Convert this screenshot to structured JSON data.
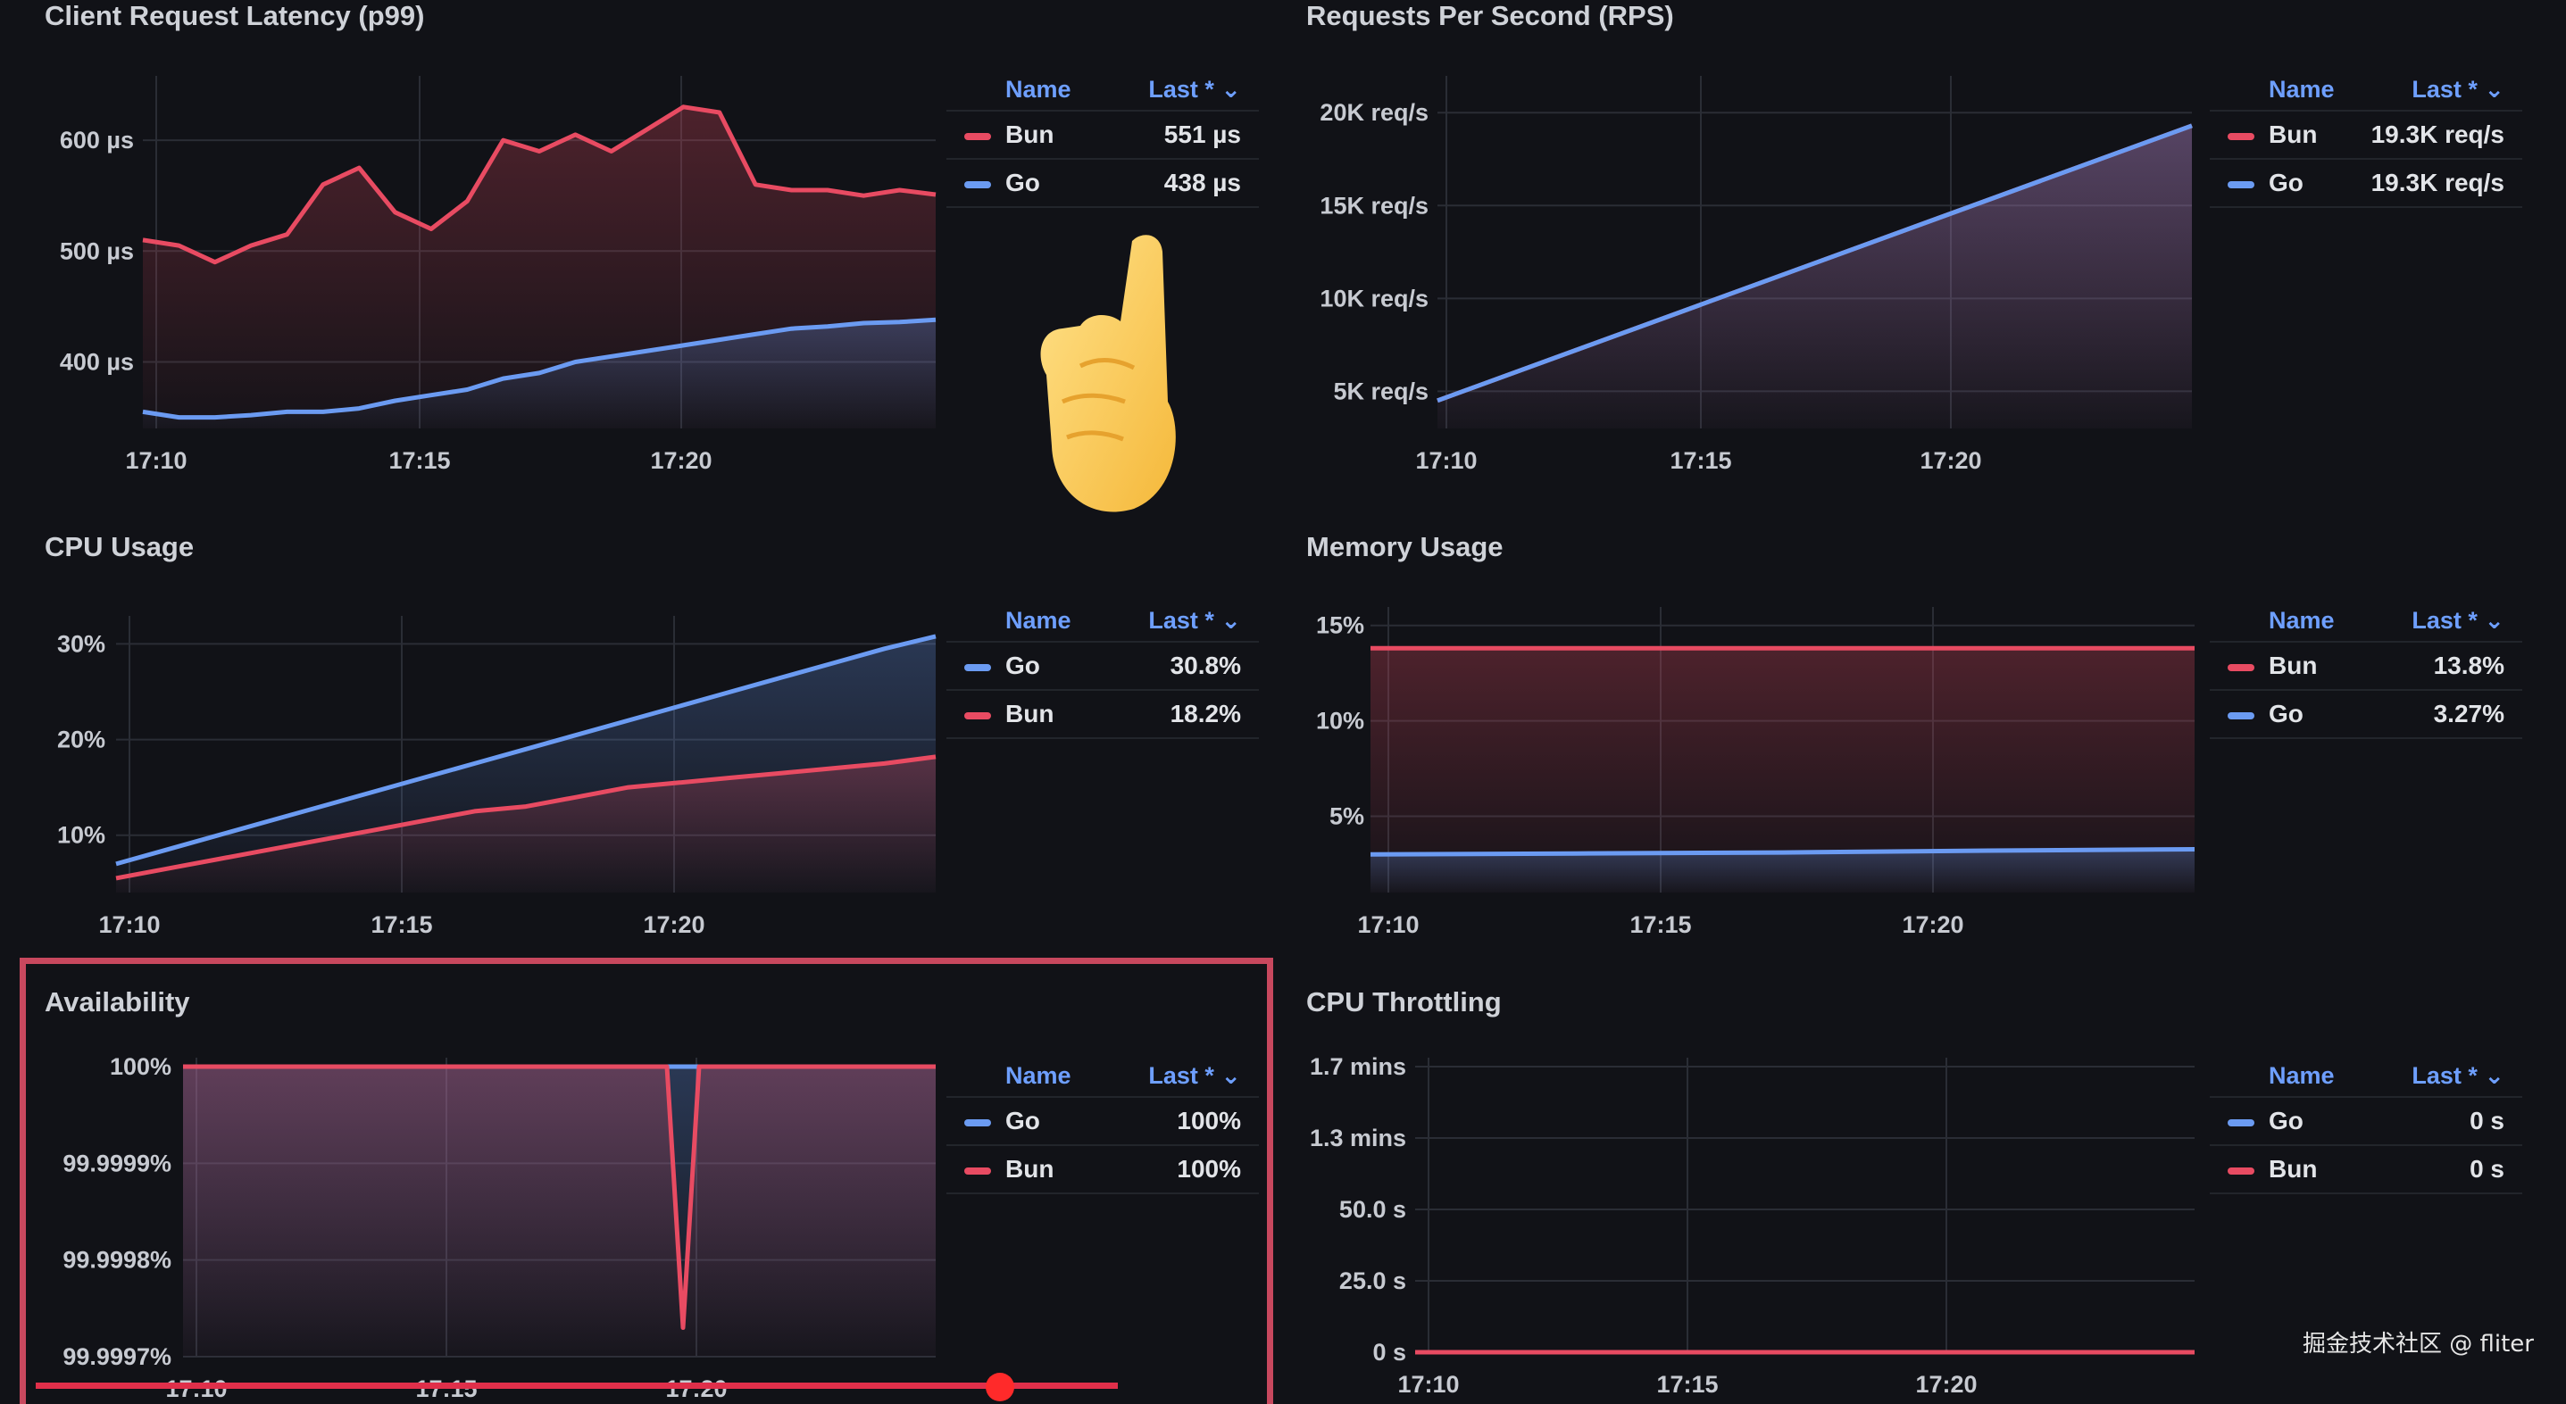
{
  "colors": {
    "bun": "#e84b62",
    "go": "#6b9bf2",
    "background": "#111217",
    "highlight": "#c8485e"
  },
  "legend_header": {
    "name": "Name",
    "last": "Last * ⌄"
  },
  "panels": [
    {
      "id": "latency",
      "title": "Client Request Latency (p99)",
      "legend": [
        {
          "name": "Bun",
          "value": "551 µs",
          "color": "#e84b62"
        },
        {
          "name": "Go",
          "value": "438 µs",
          "color": "#6b9bf2"
        }
      ],
      "chart_data": {
        "type": "line",
        "x_ticks": [
          "17:10",
          "17:15",
          "17:20"
        ],
        "y_ticks": [
          "600 µs",
          "500 µs",
          "400 µs"
        ],
        "y_tick_values": [
          600,
          500,
          400
        ],
        "ylim": [
          340,
          650
        ],
        "series": [
          {
            "name": "Bun",
            "values": [
              510,
              505,
              490,
              505,
              515,
              560,
              575,
              535,
              520,
              545,
              600,
              590,
              605,
              590,
              610,
              630,
              625,
              560,
              555,
              555,
              550,
              555,
              551
            ]
          },
          {
            "name": "Go",
            "values": [
              355,
              350,
              350,
              352,
              355,
              355,
              358,
              365,
              370,
              375,
              385,
              390,
              400,
              405,
              410,
              415,
              420,
              425,
              430,
              432,
              435,
              436,
              438
            ]
          }
        ]
      }
    },
    {
      "id": "rps",
      "title": "Requests Per Second (RPS)",
      "legend": [
        {
          "name": "Bun",
          "value": "19.3K req/s",
          "color": "#e84b62"
        },
        {
          "name": "Go",
          "value": "19.3K req/s",
          "color": "#6b9bf2"
        }
      ],
      "chart_data": {
        "type": "line",
        "x_ticks": [
          "17:10",
          "17:15",
          "17:20"
        ],
        "y_ticks": [
          "20K req/s",
          "15K req/s",
          "10K req/s",
          "5K req/s"
        ],
        "y_tick_values": [
          20000,
          15000,
          10000,
          5000
        ],
        "ylim": [
          3000,
          21500
        ],
        "series": [
          {
            "name": "Bun",
            "values": [
              4500,
              19300
            ]
          },
          {
            "name": "Go",
            "values": [
              4500,
              19300
            ]
          }
        ]
      }
    },
    {
      "id": "cpu",
      "title": "CPU Usage",
      "legend": [
        {
          "name": "Go",
          "value": "30.8%",
          "color": "#6b9bf2"
        },
        {
          "name": "Bun",
          "value": "18.2%",
          "color": "#e84b62"
        }
      ],
      "chart_data": {
        "type": "line",
        "x_ticks": [
          "17:10",
          "17:15",
          "17:20"
        ],
        "y_ticks": [
          "30%",
          "20%",
          "10%"
        ],
        "y_tick_values": [
          30,
          20,
          10
        ],
        "ylim": [
          4,
          32
        ],
        "series": [
          {
            "name": "Go",
            "values": [
              7,
              8.5,
              10,
              11.5,
              13,
              14.5,
              16,
              17.5,
              19,
              20.5,
              22,
              23.5,
              25,
              26.5,
              28,
              29.5,
              30.8
            ]
          },
          {
            "name": "Bun",
            "values": [
              5.5,
              6.5,
              7.5,
              8.5,
              9.5,
              10.5,
              11.5,
              12.5,
              13,
              14,
              15,
              15.5,
              16,
              16.5,
              17,
              17.5,
              18.2
            ]
          }
        ]
      }
    },
    {
      "id": "memory",
      "title": "Memory Usage",
      "legend": [
        {
          "name": "Bun",
          "value": "13.8%",
          "color": "#e84b62"
        },
        {
          "name": "Go",
          "value": "3.27%",
          "color": "#6b9bf2"
        }
      ],
      "chart_data": {
        "type": "line",
        "x_ticks": [
          "17:10",
          "17:15",
          "17:20"
        ],
        "y_ticks": [
          "15%",
          "10%",
          "5%"
        ],
        "y_tick_values": [
          15,
          10,
          5
        ],
        "ylim": [
          1,
          15.5
        ],
        "series": [
          {
            "name": "Bun",
            "values": [
              13.8,
              13.8,
              13.8,
              13.8,
              13.8
            ]
          },
          {
            "name": "Go",
            "values": [
              3.0,
              3.05,
              3.1,
              3.2,
              3.27
            ]
          }
        ]
      }
    },
    {
      "id": "availability",
      "title": "Availability",
      "legend": [
        {
          "name": "Go",
          "value": "100%",
          "color": "#6b9bf2"
        },
        {
          "name": "Bun",
          "value": "100%",
          "color": "#e84b62"
        }
      ],
      "chart_data": {
        "type": "line",
        "x_ticks": [
          "17:10",
          "17:15",
          "17:20"
        ],
        "y_ticks": [
          "100%",
          "99.9999%",
          "99.9998%",
          "99.9997%"
        ],
        "y_tick_values": [
          100,
          99.9999,
          99.9998,
          99.9997
        ],
        "ylim": [
          99.9997,
          100
        ],
        "series": [
          {
            "name": "Go",
            "values": [
              100,
              100,
              100
            ]
          },
          {
            "name": "Bun",
            "values": [
              100,
              100,
              99.99973,
              100,
              100
            ]
          }
        ]
      }
    },
    {
      "id": "throttling",
      "title": "CPU Throttling",
      "legend": [
        {
          "name": "Go",
          "value": "0 s",
          "color": "#6b9bf2"
        },
        {
          "name": "Bun",
          "value": "0 s",
          "color": "#e84b62"
        }
      ],
      "chart_data": {
        "type": "line",
        "x_ticks": [
          "17:10",
          "17:15",
          "17:20"
        ],
        "y_ticks": [
          "1.7 mins",
          "1.3 mins",
          "50.0 s",
          "25.0 s",
          "0 s"
        ],
        "y_tick_values": [
          100,
          75,
          50,
          25,
          0
        ],
        "ylim": [
          0,
          100
        ],
        "series": [
          {
            "name": "Go",
            "values": [
              0,
              0
            ]
          },
          {
            "name": "Bun",
            "values": [
              0,
              0
            ]
          }
        ]
      }
    }
  ],
  "watermark": "掘金技术社区 @ fliter"
}
